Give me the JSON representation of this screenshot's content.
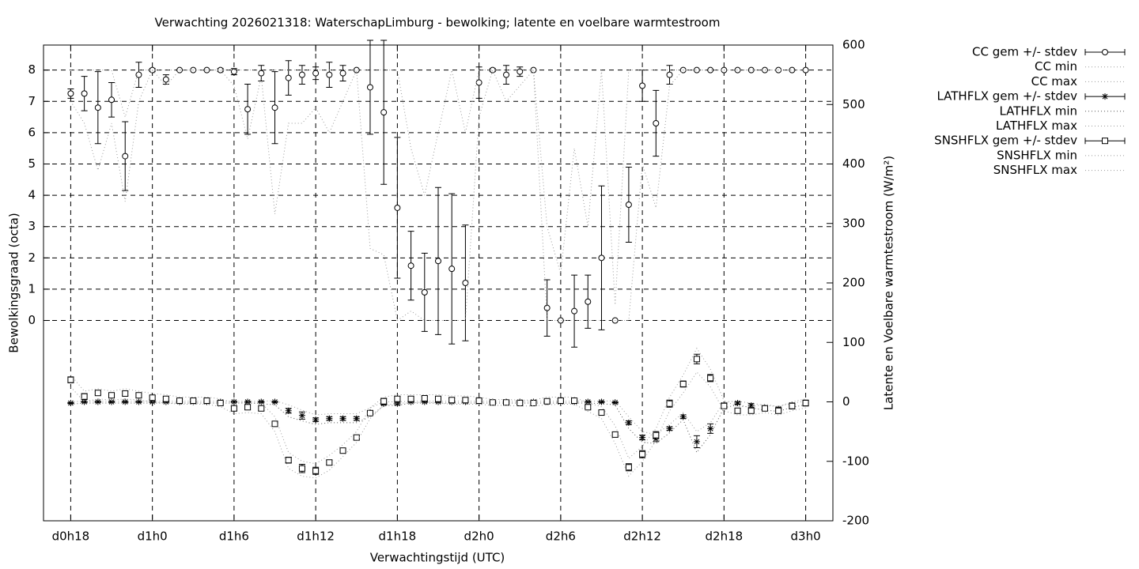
{
  "chart_data": {
    "type": "errorbar-line",
    "title": "Verwachting 2026021318: WaterschapLimburg - bewolking; latente en voelbare warmtestroom",
    "xlabel": "Verwachtingstijd (UTC)",
    "ylabel": "Bewolkingsgraad (octa)",
    "y2label": "Latente en Voelbare warmtestroom (W/m²)",
    "x": [
      18,
      19,
      20,
      21,
      22,
      23,
      24,
      25,
      26,
      27,
      28,
      29,
      30,
      31,
      32,
      33,
      34,
      35,
      36,
      37,
      38,
      39,
      40,
      41,
      42,
      43,
      44,
      45,
      46,
      47,
      48,
      49,
      50,
      51,
      52,
      53,
      54,
      55,
      56,
      57,
      58,
      59,
      60,
      61,
      62,
      63,
      64,
      65,
      66,
      67,
      68,
      69,
      70,
      71,
      72
    ],
    "xlim": [
      16,
      74
    ],
    "xticks": [
      {
        "value": 18,
        "label": "d0h18"
      },
      {
        "value": 24,
        "label": "d1h0"
      },
      {
        "value": 30,
        "label": "d1h6"
      },
      {
        "value": 36,
        "label": "d1h12"
      },
      {
        "value": 42,
        "label": "d1h18"
      },
      {
        "value": 48,
        "label": "d2h0"
      },
      {
        "value": 54,
        "label": "d2h6"
      },
      {
        "value": 60,
        "label": "d2h12"
      },
      {
        "value": 66,
        "label": "d2h18"
      },
      {
        "value": 72,
        "label": "d3h0"
      }
    ],
    "ylim": [
      -6.4,
      8.8
    ],
    "yticks": [
      0,
      1,
      2,
      3,
      4,
      5,
      6,
      7,
      8
    ],
    "y2lim": [
      -200,
      600
    ],
    "y2ticks": [
      -200,
      -100,
      0,
      100,
      200,
      300,
      400,
      500,
      600
    ],
    "grid": true,
    "legend": "outside-right",
    "series": [
      {
        "name": "CC gem +/- stdev",
        "color": "#000000",
        "style": "errorbars",
        "marker": "circle",
        "axis": "y",
        "values": [
          7.25,
          7.25,
          6.8,
          7.05,
          5.25,
          7.85,
          8,
          7.7,
          8,
          8,
          8,
          8,
          7.95,
          6.75,
          7.9,
          6.8,
          7.75,
          7.85,
          7.9,
          7.85,
          7.9,
          8,
          7.45,
          6.65,
          3.6,
          1.75,
          0.9,
          1.9,
          1.65,
          1.2,
          7.6,
          8,
          7.85,
          7.95,
          8,
          0.4,
          0,
          0.3,
          0.6,
          2,
          0,
          3.7,
          7.5,
          6.3,
          7.85,
          8,
          8,
          8,
          8,
          8,
          8,
          8,
          8,
          8,
          8
        ],
        "errors": [
          0.15,
          0.55,
          1.15,
          0.55,
          1.1,
          0.4,
          0.05,
          0.15,
          0,
          0,
          0,
          0.05,
          0.1,
          0.8,
          0.25,
          1.15,
          0.55,
          0.3,
          0.2,
          0.4,
          0.25,
          0,
          1.5,
          2.3,
          2.25,
          1.1,
          1.25,
          2.35,
          2.4,
          1.85,
          0.5,
          0.05,
          0.3,
          0.15,
          0,
          0.9,
          0,
          1.15,
          0.85,
          2.3,
          0,
          1.2,
          0.5,
          1.05,
          0.3,
          0,
          0,
          0,
          0,
          0,
          0,
          0,
          0,
          0,
          0
        ]
      },
      {
        "name": "CC min",
        "color": "#999999",
        "style": "dotted",
        "axis": "y",
        "values": [
          7,
          6.3,
          4.8,
          6.3,
          3.8,
          7,
          8,
          7.5,
          8,
          8,
          8,
          8,
          7.5,
          5.8,
          7.8,
          3.4,
          6.3,
          6.3,
          6.8,
          6,
          7,
          8,
          2.3,
          2.1,
          0,
          0.3,
          0,
          0,
          0,
          0,
          6.5,
          8,
          7,
          7.5,
          8,
          0,
          0,
          0,
          0,
          0,
          0,
          0,
          5,
          3.6,
          7.5,
          8,
          8,
          8,
          8,
          8,
          8,
          8,
          8,
          8,
          8
        ]
      },
      {
        "name": "CC max",
        "color": "#999999",
        "style": "dotted",
        "axis": "y",
        "values": [
          8,
          8,
          8,
          8,
          6.5,
          8,
          8,
          8,
          8,
          8,
          8,
          8,
          8,
          8,
          8,
          8,
          8,
          8,
          8,
          8,
          8,
          8,
          8,
          8,
          8,
          5.5,
          4,
          6,
          8,
          6,
          8,
          8,
          8,
          8,
          8,
          3,
          1.5,
          5.5,
          3,
          8,
          0.5,
          8,
          8,
          8,
          8,
          8,
          8,
          8,
          8,
          8,
          8,
          8,
          8,
          8,
          8
        ]
      },
      {
        "name": "LATHFLX gem +/- stdev",
        "color": "#000000",
        "style": "errorbars",
        "marker": "star",
        "axis": "y2",
        "values": [
          -2,
          0,
          0,
          0,
          0,
          0,
          0,
          0,
          0,
          0,
          0,
          0,
          0,
          0,
          0,
          0,
          -15,
          -23,
          -30,
          -28,
          -28,
          -28,
          -18,
          -3,
          -3,
          0,
          0,
          0,
          0,
          0,
          0,
          0,
          0,
          0,
          0,
          0,
          0,
          0,
          0,
          0,
          -1,
          -35,
          -60,
          -62,
          -45,
          -25,
          -67,
          -45,
          -5,
          -2,
          -6,
          -10,
          -12,
          -5,
          -2
        ],
        "errors": [
          1,
          1,
          1,
          1,
          1,
          1,
          1,
          1,
          1,
          1,
          1,
          1,
          1,
          1,
          1,
          1,
          4,
          6,
          3,
          3,
          3,
          3,
          3,
          2,
          2,
          1,
          1,
          1,
          1,
          1,
          1,
          1,
          1,
          1,
          1,
          1,
          1,
          1,
          1,
          1,
          1,
          3,
          4,
          5,
          3,
          3,
          10,
          8,
          3,
          2,
          3,
          3,
          3,
          2,
          2
        ]
      },
      {
        "name": "LATHFLX min",
        "color": "#555555",
        "style": "dotted",
        "axis": "y2",
        "values": [
          -4,
          -2,
          -2,
          -2,
          -2,
          -2,
          -2,
          -2,
          -2,
          -2,
          -2,
          -2,
          -2,
          -2,
          -3,
          -5,
          -25,
          -32,
          -38,
          -35,
          -35,
          -35,
          -25,
          -6,
          -6,
          -2,
          -2,
          -2,
          -2,
          -2,
          -2,
          -2,
          -2,
          -2,
          -2,
          -2,
          -2,
          -2,
          -2,
          -3,
          -5,
          -45,
          -68,
          -70,
          -52,
          -30,
          -85,
          -55,
          -10,
          -5,
          -10,
          -14,
          -16,
          -9,
          -5
        ]
      },
      {
        "name": "LATHFLX max",
        "color": "#999999",
        "style": "dotted",
        "axis": "y2",
        "values": [
          0,
          1,
          1,
          1,
          1,
          1,
          1,
          1,
          1,
          1,
          1,
          1,
          1,
          1,
          1,
          2,
          -5,
          -14,
          -22,
          -20,
          -20,
          -20,
          -10,
          0,
          0,
          1,
          1,
          1,
          1,
          1,
          1,
          1,
          1,
          1,
          1,
          1,
          1,
          1,
          1,
          1,
          2,
          -25,
          -50,
          -55,
          -38,
          -18,
          -50,
          -35,
          0,
          1,
          -2,
          -6,
          -8,
          -2,
          1
        ]
      },
      {
        "name": "SNSHFLX gem +/- stdev",
        "color": "#000000",
        "style": "errorbars",
        "marker": "square",
        "axis": "y2",
        "values": [
          37,
          9,
          15,
          11,
          14,
          11,
          7,
          5,
          2,
          2,
          2,
          -2,
          -11,
          -9,
          -11,
          -37,
          -98,
          -112,
          -116,
          -102,
          -82,
          -60,
          -19,
          1,
          5,
          5,
          6,
          5,
          3,
          3,
          2,
          -1,
          -1,
          -2,
          -2,
          1,
          2,
          2,
          -9,
          -18,
          -55,
          -110,
          -88,
          -56,
          -3,
          30,
          72,
          40,
          -7,
          -15,
          -15,
          -11,
          -15,
          -7,
          -2
        ],
        "errors": [
          5,
          5,
          3,
          3,
          4,
          3,
          3,
          3,
          2,
          2,
          2,
          2,
          4,
          4,
          4,
          3,
          5,
          7,
          6,
          4,
          3,
          3,
          3,
          5,
          4,
          4,
          3,
          3,
          3,
          3,
          2,
          2,
          2,
          2,
          2,
          3,
          3,
          3,
          3,
          3,
          4,
          6,
          6,
          6,
          6,
          5,
          8,
          6,
          4,
          3,
          3,
          3,
          3,
          5,
          5
        ]
      },
      {
        "name": "SNSHFLX min",
        "color": "#999999",
        "style": "dotted",
        "axis": "y2",
        "values": [
          25,
          0,
          5,
          3,
          5,
          3,
          0,
          -2,
          -4,
          -4,
          -4,
          -8,
          -20,
          -18,
          -20,
          -50,
          -112,
          -125,
          -128,
          -115,
          -92,
          -68,
          -28,
          -6,
          -2,
          -2,
          0,
          -2,
          -4,
          -4,
          -4,
          -6,
          -6,
          -7,
          -7,
          -5,
          -4,
          -4,
          -16,
          -28,
          -70,
          -125,
          -100,
          -65,
          -15,
          15,
          50,
          25,
          -15,
          -22,
          -22,
          -18,
          -22,
          -15,
          -10
        ]
      },
      {
        "name": "SNSHFLX max",
        "color": "#999999",
        "style": "dotted",
        "axis": "y2",
        "values": [
          45,
          18,
          22,
          18,
          22,
          18,
          14,
          12,
          8,
          8,
          8,
          5,
          -2,
          0,
          -2,
          -25,
          -85,
          -100,
          -104,
          -90,
          -72,
          -50,
          -10,
          8,
          12,
          12,
          12,
          12,
          10,
          10,
          8,
          4,
          4,
          3,
          3,
          8,
          8,
          8,
          -2,
          -8,
          -40,
          -95,
          -75,
          -45,
          8,
          45,
          90,
          55,
          2,
          -8,
          -8,
          -4,
          -8,
          0,
          5
        ]
      }
    ]
  }
}
